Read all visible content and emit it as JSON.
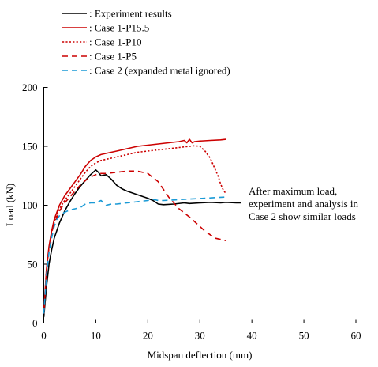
{
  "chart_data": {
    "type": "line",
    "xlabel": "Midspan deflection  (mm)",
    "ylabel": "Load  (kN)",
    "xlim": [
      0,
      60
    ],
    "ylim": [
      0,
      200
    ],
    "xticks": [
      0,
      10,
      20,
      30,
      40,
      50,
      60
    ],
    "yticks": [
      0,
      50,
      100,
      150,
      200
    ],
    "grid": false,
    "legend_position": "top-left",
    "series": [
      {
        "name": ": Experiment results",
        "color": "#000000",
        "dash": "solid",
        "x": [
          0,
          0.5,
          1,
          1.5,
          2,
          3,
          4,
          5,
          6,
          7,
          8,
          9,
          10,
          10.5,
          11,
          12,
          13,
          14,
          15,
          16,
          18,
          20,
          21,
          22,
          23,
          25,
          27,
          28,
          30,
          32,
          34,
          35,
          37,
          38
        ],
        "y": [
          5,
          30,
          50,
          62,
          72,
          85,
          95,
          103,
          110,
          116,
          121,
          126,
          130,
          128,
          125,
          126,
          122,
          117,
          114,
          112,
          109,
          106,
          104,
          101,
          100.5,
          101,
          102,
          101.5,
          102,
          102.5,
          102,
          102.5,
          102,
          102
        ]
      },
      {
        "name": ": Case 1-P15.5",
        "color": "#cc0000",
        "dash": "solid",
        "x": [
          0,
          0.5,
          1,
          1.5,
          2,
          3,
          4,
          5,
          6,
          7,
          8,
          9,
          10,
          11,
          12,
          14,
          16,
          18,
          20,
          22,
          24,
          26,
          27,
          27.5,
          28,
          28.5,
          29,
          30,
          32,
          34,
          35
        ],
        "y": [
          8,
          45,
          65,
          78,
          88,
          100,
          108,
          114,
          120,
          126,
          133,
          138,
          141,
          143,
          144,
          146,
          148,
          150,
          151,
          152,
          153,
          154,
          155,
          153,
          156,
          153,
          154,
          154.5,
          155,
          155.5,
          156
        ]
      },
      {
        "name": ": Case 1-P10",
        "color": "#cc0000",
        "dash": "dotted",
        "x": [
          0,
          0.5,
          1,
          1.5,
          2,
          3,
          4,
          5,
          6,
          7,
          8,
          9,
          10,
          11,
          12,
          14,
          16,
          18,
          20,
          22,
          24,
          26,
          27,
          28,
          29,
          30,
          31,
          32,
          33,
          33.5,
          34,
          34.5,
          35
        ],
        "y": [
          8,
          44,
          64,
          76,
          86,
          97,
          104,
          110,
          116,
          122,
          128,
          133,
          136,
          138,
          139,
          141,
          143,
          145,
          146,
          147,
          148,
          149,
          149.5,
          150,
          150.5,
          150,
          146,
          140,
          130,
          125,
          118,
          113,
          110
        ]
      },
      {
        "name": ": Case 1-P5",
        "color": "#cc0000",
        "dash": "dashed",
        "x": [
          0,
          0.5,
          1,
          1.5,
          2,
          3,
          4,
          5,
          6,
          7,
          8,
          9,
          10,
          11,
          12,
          14,
          16,
          18,
          20,
          22,
          24,
          26,
          28,
          30,
          31,
          32,
          33,
          34,
          35
        ],
        "y": [
          8,
          42,
          62,
          74,
          84,
          95,
          102,
          107,
          112,
          117,
          121,
          124,
          126,
          127,
          127,
          128,
          129,
          129,
          127,
          120,
          107,
          97,
          90,
          82,
          78,
          75,
          72,
          71,
          70
        ]
      },
      {
        "name": ": Case 2 (expanded metal ignored)",
        "color": "#1a9ad6",
        "dash": "dashed",
        "x": [
          0,
          0.5,
          1,
          1.5,
          2,
          2.5,
          3,
          4,
          5,
          6,
          7,
          8,
          9,
          10,
          11,
          12,
          13,
          14,
          16,
          18,
          20,
          21,
          22,
          23,
          25,
          27,
          29,
          31,
          33,
          35
        ],
        "y": [
          8,
          40,
          60,
          72,
          82,
          88,
          91,
          94,
          96,
          97,
          98,
          101,
          102,
          102,
          104,
          100,
          101,
          101,
          102,
          103,
          104,
          105,
          104,
          104,
          104.5,
          105,
          105.5,
          106,
          106.5,
          107
        ]
      }
    ],
    "annotation": {
      "lines": [
        "After maximum load,",
        "experiment and analysis in",
        "Case 2 show similar loads"
      ]
    }
  }
}
